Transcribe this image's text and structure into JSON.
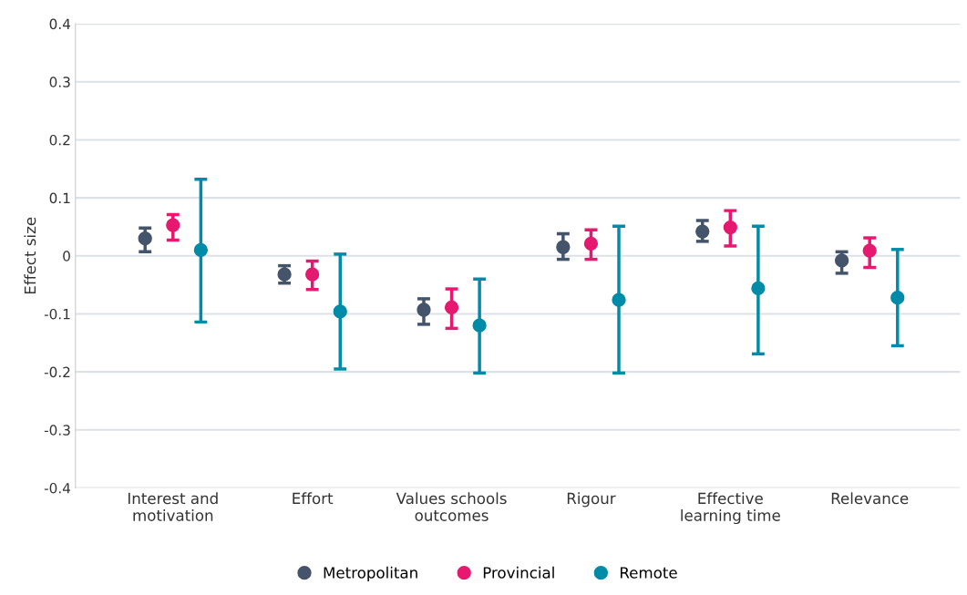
{
  "chart_data": {
    "type": "scatter",
    "ylabel": "Effect size",
    "categories": [
      "Interest and\nmotivation",
      "Effort",
      "Values schools\noutcomes",
      "Rigour",
      "Effective\nlearning time",
      "Relevance"
    ],
    "series": [
      {
        "name": "Metropolitan",
        "color": "#44546a",
        "values": [
          0.03,
          -0.032,
          -0.093,
          0.015,
          0.042,
          -0.008
        ],
        "errors": [
          [
            0.007,
            0.048
          ],
          [
            -0.047,
            -0.017
          ],
          [
            -0.118,
            -0.074
          ],
          [
            -0.006,
            0.038
          ],
          [
            0.025,
            0.061
          ],
          [
            -0.03,
            0.007
          ]
        ]
      },
      {
        "name": "Provincial",
        "color": "#e6186f",
        "values": [
          0.053,
          -0.032,
          -0.089,
          0.021,
          0.049,
          0.009
        ],
        "errors": [
          [
            0.027,
            0.071
          ],
          [
            -0.058,
            -0.009
          ],
          [
            -0.125,
            -0.057
          ],
          [
            -0.006,
            0.045
          ],
          [
            0.017,
            0.078
          ],
          [
            -0.02,
            0.031
          ]
        ]
      },
      {
        "name": "Remote",
        "color": "#008ba8",
        "values": [
          0.01,
          -0.096,
          -0.12,
          -0.076,
          -0.056,
          -0.072
        ],
        "errors": [
          [
            -0.114,
            0.132
          ],
          [
            -0.195,
            0.003
          ],
          [
            -0.202,
            -0.04
          ],
          [
            -0.202,
            0.051
          ],
          [
            -0.169,
            0.051
          ],
          [
            -0.155,
            0.011
          ]
        ]
      }
    ],
    "ylim": [
      -0.4,
      0.4
    ],
    "yticks": [
      -0.4,
      -0.3,
      -0.2,
      -0.1,
      0,
      0.1,
      0.2,
      0.3,
      0.4
    ],
    "grid": "y",
    "legend": "bottom",
    "marker": "circle"
  }
}
